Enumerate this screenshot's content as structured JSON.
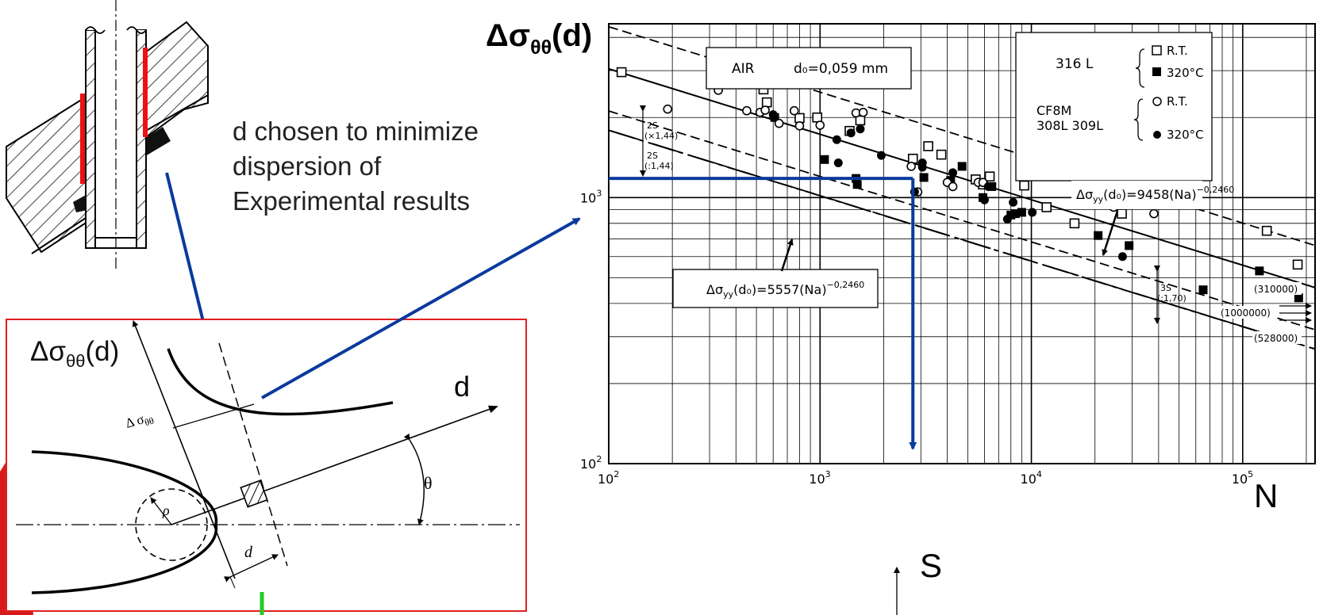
{
  "annotation": {
    "line1": "d chosen to minimize",
    "line2": "dispersion of",
    "line3": "Experimental results"
  },
  "inset": {
    "ylabel_main": "Δσ",
    "ylabel_sub": "θθ",
    "ylabel_arg": "(d)",
    "d_axis": "d",
    "theta": "θ",
    "rho": "ρ",
    "d_small": "d",
    "dsigma_main": "Δ σ",
    "dsigma_sub": "θθ"
  },
  "s_label": "S",
  "colors": {
    "red": "#ee1111",
    "blue": "#0b3a9e",
    "green": "#22cc22",
    "inset_border": "#e02020"
  },
  "chart_data": {
    "type": "scatter",
    "ylabel_main": "Δσ",
    "ylabel_sub": "θθ",
    "ylabel_arg": "(d)",
    "xlabel": "N",
    "xscale": "log",
    "yscale": "log",
    "xlim": [
      100,
      220000
    ],
    "ylim": [
      100,
      4500
    ],
    "x_ticks": [
      {
        "base": "10",
        "exp": "2",
        "value": 100
      },
      {
        "base": "10",
        "exp": "3",
        "value": 1000
      },
      {
        "base": "10",
        "exp": "4",
        "value": 10000
      },
      {
        "base": "10",
        "exp": "5",
        "value": 100000
      }
    ],
    "y_ticks": [
      {
        "base": "10",
        "exp": "2",
        "value": 100
      },
      {
        "base": "10",
        "exp": "3",
        "value": 1000
      }
    ],
    "grid": true,
    "air_box": {
      "label": "AIR",
      "d0": "d₀=0,059 mm"
    },
    "legend": {
      "g1_material": "316 L",
      "g1_a": "R.T.",
      "g1_b": "320°C",
      "g2_material_1": "CF8M",
      "g2_material_2": "308L  309L",
      "g2_a": "R.T.",
      "g2_b": "320°C"
    },
    "fit_upper_prefix": "Δσ",
    "fit_upper_sub": "yy",
    "fit_upper_text": "(d₀)=9458(Na)",
    "fit_upper_exp": "−0,2460",
    "fit_lower_prefix": "Δσ",
    "fit_lower_sub": "yy",
    "fit_lower_text": "(d₀)=5557(Na)",
    "fit_lower_exp": "−0,2460",
    "band_labels": [
      "2S",
      "(×1,44)",
      "2S",
      "(:1,44)",
      "3S",
      "(:1,70)"
    ],
    "runout_labels": [
      "(310000)",
      "(1000000)",
      "(528000)"
    ],
    "highlight": {
      "x": 2750,
      "y": 1180
    },
    "series": [
      {
        "name": "316 L R.T.",
        "marker": "open-square",
        "points": [
          [
            115,
            2960
          ],
          [
            330,
            2830
          ],
          [
            540,
            2550
          ],
          [
            560,
            2280
          ],
          [
            800,
            1990
          ],
          [
            970,
            2000
          ],
          [
            1380,
            1780
          ],
          [
            1550,
            1950
          ],
          [
            2750,
            1400
          ],
          [
            3250,
            1560
          ],
          [
            3750,
            1450
          ],
          [
            5450,
            1170
          ],
          [
            5900,
            1120
          ],
          [
            6350,
            1200
          ],
          [
            9250,
            1110
          ],
          [
            11800,
            920
          ],
          [
            16000,
            800
          ],
          [
            19000,
            1060
          ],
          [
            26800,
            870
          ],
          [
            36500,
            1000
          ],
          [
            130000,
            750
          ],
          [
            182000,
            560
          ]
        ]
      },
      {
        "name": "316 L 320°C",
        "marker": "filled-square",
        "points": [
          [
            610,
            2000
          ],
          [
            1050,
            1390
          ],
          [
            1480,
            1180
          ],
          [
            1500,
            1120
          ],
          [
            3100,
            1190
          ],
          [
            4150,
            1160
          ],
          [
            4700,
            1310
          ],
          [
            5900,
            1000
          ],
          [
            6500,
            1100
          ],
          [
            8000,
            860
          ],
          [
            8400,
            870
          ],
          [
            9000,
            880
          ],
          [
            20700,
            720
          ],
          [
            29000,
            660
          ],
          [
            65000,
            450
          ],
          [
            120000,
            530
          ],
          [
            184000,
            420
          ]
        ]
      },
      {
        "name": "CF8M 308L 309L R.T.",
        "marker": "open-circle",
        "points": [
          [
            190,
            2150
          ],
          [
            330,
            2530
          ],
          [
            450,
            2120
          ],
          [
            520,
            2090
          ],
          [
            550,
            2130
          ],
          [
            640,
            1900
          ],
          [
            755,
            2120
          ],
          [
            800,
            1860
          ],
          [
            1000,
            1870
          ],
          [
            1480,
            2080
          ],
          [
            1600,
            2090
          ],
          [
            2700,
            1310
          ],
          [
            2900,
            1050
          ],
          [
            4000,
            1140
          ],
          [
            4250,
            1100
          ],
          [
            5600,
            1140
          ],
          [
            5900,
            1140
          ],
          [
            24500,
            920
          ],
          [
            38000,
            870
          ]
        ]
      },
      {
        "name": "CF8M 308L 309L 320°C",
        "marker": "filled-circle",
        "points": [
          [
            600,
            2050
          ],
          [
            1200,
            1650
          ],
          [
            1220,
            1350
          ],
          [
            1400,
            1750
          ],
          [
            1550,
            1810
          ],
          [
            1950,
            1440
          ],
          [
            2800,
            1050
          ],
          [
            3050,
            1300
          ],
          [
            3050,
            1350
          ],
          [
            4250,
            1240
          ],
          [
            6000,
            980
          ],
          [
            6250,
            1100
          ],
          [
            7700,
            830
          ],
          [
            8200,
            960
          ],
          [
            10100,
            880
          ],
          [
            27000,
            600
          ]
        ]
      }
    ]
  }
}
